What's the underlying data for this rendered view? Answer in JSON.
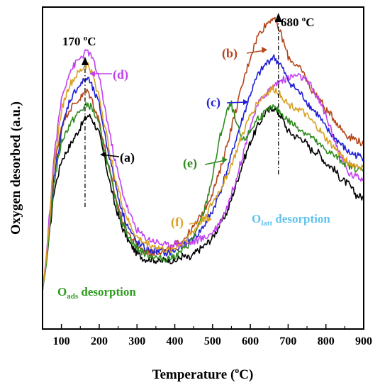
{
  "chart_data": {
    "type": "line",
    "xlabel": "Temperature (",
    "xlabel_sup": "o",
    "xlabel_end": "C)",
    "ylabel": "Oxygen desorbed (a.u.)",
    "xlim": [
      50,
      900
    ],
    "ylim": [
      0,
      1
    ],
    "x_ticks": [
      100,
      200,
      300,
      400,
      500,
      600,
      700,
      800,
      900
    ],
    "y_ticks_shown": false,
    "series": [
      {
        "label": "(a)",
        "color": "#000000",
        "x": [
          50,
          60,
          80,
          100,
          120,
          140,
          160,
          170,
          180,
          200,
          220,
          240,
          260,
          280,
          300,
          320,
          340,
          360,
          380,
          400,
          420,
          440,
          460,
          480,
          500,
          520,
          540,
          560,
          580,
          600,
          620,
          640,
          660,
          680,
          700,
          720,
          740,
          760,
          780,
          800,
          820,
          840,
          860,
          880,
          900
        ],
        "y": [
          0.0,
          0.1,
          0.37,
          0.49,
          0.54,
          0.59,
          0.64,
          0.66,
          0.65,
          0.59,
          0.46,
          0.33,
          0.24,
          0.18,
          0.14,
          0.12,
          0.12,
          0.11,
          0.12,
          0.11,
          0.13,
          0.12,
          0.15,
          0.17,
          0.2,
          0.25,
          0.3,
          0.39,
          0.48,
          0.56,
          0.62,
          0.67,
          0.69,
          0.66,
          0.6,
          0.58,
          0.57,
          0.53,
          0.52,
          0.48,
          0.46,
          0.42,
          0.4,
          0.36,
          0.35
        ]
      },
      {
        "label": "(b)",
        "color": "#b5451b",
        "x": [
          50,
          60,
          80,
          100,
          120,
          140,
          160,
          170,
          180,
          200,
          220,
          240,
          260,
          280,
          300,
          320,
          340,
          360,
          380,
          400,
          420,
          440,
          460,
          480,
          500,
          520,
          540,
          560,
          580,
          600,
          620,
          640,
          660,
          680,
          700,
          720,
          740,
          760,
          780,
          800,
          820,
          840,
          860,
          880,
          900
        ],
        "y": [
          0.0,
          0.12,
          0.46,
          0.62,
          0.68,
          0.71,
          0.74,
          0.75,
          0.72,
          0.64,
          0.5,
          0.37,
          0.27,
          0.21,
          0.17,
          0.15,
          0.14,
          0.15,
          0.15,
          0.17,
          0.19,
          0.22,
          0.26,
          0.31,
          0.37,
          0.45,
          0.56,
          0.67,
          0.78,
          0.88,
          0.96,
          1.0,
          1.03,
          0.97,
          0.88,
          0.85,
          0.82,
          0.76,
          0.73,
          0.68,
          0.65,
          0.61,
          0.58,
          0.57,
          0.55
        ]
      },
      {
        "label": "(c)",
        "color": "#1f1fd6",
        "x": [
          50,
          60,
          80,
          100,
          120,
          140,
          160,
          170,
          180,
          200,
          220,
          240,
          260,
          280,
          300,
          320,
          340,
          360,
          380,
          400,
          420,
          440,
          460,
          480,
          500,
          520,
          540,
          560,
          580,
          600,
          620,
          640,
          660,
          680,
          700,
          720,
          740,
          760,
          780,
          800,
          820,
          840,
          860,
          880,
          900
        ],
        "y": [
          0.0,
          0.11,
          0.42,
          0.6,
          0.71,
          0.76,
          0.79,
          0.8,
          0.77,
          0.7,
          0.55,
          0.42,
          0.3,
          0.23,
          0.18,
          0.16,
          0.15,
          0.15,
          0.14,
          0.15,
          0.17,
          0.19,
          0.21,
          0.25,
          0.3,
          0.37,
          0.46,
          0.56,
          0.65,
          0.74,
          0.81,
          0.85,
          0.88,
          0.85,
          0.79,
          0.76,
          0.73,
          0.69,
          0.66,
          0.61,
          0.58,
          0.55,
          0.52,
          0.51,
          0.5
        ]
      },
      {
        "label": "(d)",
        "color": "#c040f0",
        "x": [
          50,
          60,
          80,
          100,
          120,
          140,
          160,
          170,
          180,
          200,
          220,
          240,
          260,
          280,
          300,
          320,
          340,
          360,
          380,
          400,
          420,
          440,
          460,
          480,
          500,
          520,
          540,
          560,
          580,
          600,
          620,
          640,
          660,
          680,
          700,
          720,
          740,
          760,
          780,
          800,
          820,
          840,
          860,
          880,
          900
        ],
        "y": [
          0.0,
          0.13,
          0.5,
          0.72,
          0.82,
          0.86,
          0.89,
          0.9,
          0.88,
          0.8,
          0.65,
          0.5,
          0.38,
          0.29,
          0.23,
          0.2,
          0.19,
          0.18,
          0.17,
          0.18,
          0.17,
          0.18,
          0.19,
          0.2,
          0.22,
          0.26,
          0.32,
          0.41,
          0.51,
          0.62,
          0.7,
          0.74,
          0.77,
          0.79,
          0.8,
          0.81,
          0.8,
          0.77,
          0.72,
          0.66,
          0.58,
          0.5,
          0.44,
          0.43,
          0.42
        ]
      },
      {
        "label": "(e)",
        "color": "#2e8b1e",
        "x": [
          50,
          60,
          80,
          100,
          120,
          140,
          160,
          170,
          180,
          200,
          220,
          240,
          260,
          280,
          300,
          320,
          340,
          360,
          380,
          400,
          420,
          440,
          460,
          480,
          500,
          520,
          540,
          550,
          560,
          580,
          600,
          620,
          640,
          660,
          680,
          700,
          720,
          740,
          760,
          780,
          800,
          820,
          840,
          860,
          880,
          900
        ],
        "y": [
          0.0,
          0.1,
          0.4,
          0.56,
          0.62,
          0.66,
          0.69,
          0.7,
          0.69,
          0.62,
          0.49,
          0.36,
          0.26,
          0.2,
          0.16,
          0.14,
          0.13,
          0.12,
          0.12,
          0.13,
          0.15,
          0.18,
          0.23,
          0.31,
          0.43,
          0.58,
          0.68,
          0.7,
          0.64,
          0.56,
          0.6,
          0.65,
          0.67,
          0.69,
          0.67,
          0.64,
          0.62,
          0.6,
          0.58,
          0.55,
          0.53,
          0.51,
          0.49,
          0.47,
          0.46,
          0.45
        ]
      },
      {
        "label": "(f)",
        "color": "#d8a023",
        "x": [
          50,
          60,
          80,
          100,
          120,
          140,
          160,
          170,
          180,
          200,
          220,
          240,
          260,
          280,
          300,
          320,
          340,
          360,
          380,
          400,
          420,
          440,
          460,
          480,
          500,
          520,
          540,
          560,
          580,
          600,
          620,
          640,
          660,
          680,
          700,
          720,
          740,
          760,
          780,
          800,
          820,
          840,
          860,
          880,
          900
        ],
        "y": [
          0.0,
          0.12,
          0.47,
          0.68,
          0.77,
          0.81,
          0.84,
          0.85,
          0.82,
          0.73,
          0.58,
          0.44,
          0.33,
          0.25,
          0.2,
          0.18,
          0.17,
          0.16,
          0.15,
          0.16,
          0.18,
          0.21,
          0.24,
          0.28,
          0.33,
          0.38,
          0.44,
          0.51,
          0.59,
          0.66,
          0.71,
          0.74,
          0.76,
          0.74,
          0.7,
          0.69,
          0.67,
          0.64,
          0.61,
          0.57,
          0.54,
          0.51,
          0.48,
          0.47,
          0.46
        ]
      }
    ],
    "annotations": {
      "peak_low": {
        "text": "170 ",
        "sup": "o",
        "end": "C",
        "x": 170
      },
      "peak_high": {
        "text": "680 ",
        "sup": "o",
        "end": "C",
        "x": 680
      },
      "oads": {
        "text": "O",
        "sub": "ads",
        "end": " desorption",
        "color": "#2e9d1e"
      },
      "olatt": {
        "text": "O",
        "sub": "latt",
        "end": " desorption",
        "color": "#5fc3ee"
      }
    }
  }
}
